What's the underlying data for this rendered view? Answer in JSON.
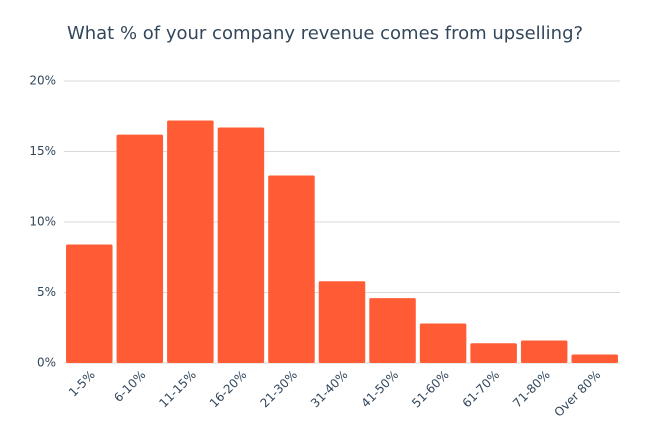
{
  "chart_data": {
    "type": "bar",
    "title": "What % of your company revenue comes from upselling?",
    "categories": [
      "1-5%",
      "6-10%",
      "11-15%",
      "16-20%",
      "21-30%",
      "31-40%",
      "41-50%",
      "51-60%",
      "61-70%",
      "71-80%",
      "Over 80%"
    ],
    "values": [
      8.4,
      16.2,
      17.2,
      16.7,
      13.3,
      5.8,
      4.6,
      2.8,
      1.4,
      1.6,
      0.6
    ],
    "color": "#ff5c35",
    "ylim": [
      0,
      20
    ],
    "yticks": [
      {
        "value": 0,
        "label": "0%"
      },
      {
        "value": 5,
        "label": "5%"
      },
      {
        "value": 10,
        "label": "10%"
      },
      {
        "value": 15,
        "label": "15%"
      },
      {
        "value": 20,
        "label": "20%"
      }
    ],
    "grid": true
  }
}
